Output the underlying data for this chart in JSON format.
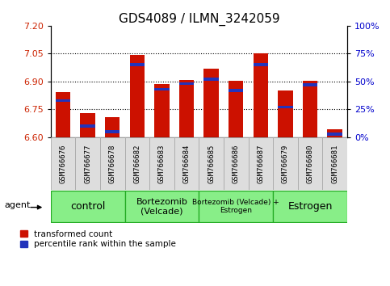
{
  "title": "GDS4089 / ILMN_3242059",
  "samples": [
    "GSM766676",
    "GSM766677",
    "GSM766678",
    "GSM766682",
    "GSM766683",
    "GSM766684",
    "GSM766685",
    "GSM766686",
    "GSM766687",
    "GSM766679",
    "GSM766680",
    "GSM766681"
  ],
  "red_values": [
    6.845,
    6.73,
    6.71,
    7.045,
    6.885,
    6.91,
    6.97,
    6.905,
    7.05,
    6.85,
    6.905,
    6.645
  ],
  "blue_percentiles": [
    33,
    10,
    5,
    65,
    43,
    48,
    52,
    42,
    65,
    27,
    47,
    3
  ],
  "y_min": 6.6,
  "y_max": 7.2,
  "y_ticks_left": [
    6.6,
    6.75,
    6.9,
    7.05,
    7.2
  ],
  "y_ticks_right": [
    0,
    25,
    50,
    75,
    100
  ],
  "y_labels_right": [
    "0%",
    "25%",
    "50%",
    "75%",
    "100%"
  ],
  "dotted_lines": [
    6.75,
    6.9,
    7.05
  ],
  "bar_color_red": "#cc1100",
  "bar_color_blue": "#2233bb",
  "bar_width": 0.6,
  "title_fontsize": 11,
  "groups": [
    {
      "label": "control",
      "start": 0,
      "end": 2,
      "fontsize": 9
    },
    {
      "label": "Bortezomib\n(Velcade)",
      "start": 3,
      "end": 5,
      "fontsize": 8
    },
    {
      "label": "Bortezomib (Velcade) +\nEstrogen",
      "start": 6,
      "end": 8,
      "fontsize": 6.5
    },
    {
      "label": "Estrogen",
      "start": 9,
      "end": 11,
      "fontsize": 9
    }
  ],
  "group_fill": "#88ee88",
  "group_edge": "#22aa22",
  "sample_box_fill": "#dddddd",
  "sample_box_edge": "#aaaaaa",
  "legend_red": "transformed count",
  "legend_blue": "percentile rank within the sample",
  "axis_color_red": "#cc2200",
  "axis_color_blue": "#0000cc",
  "sample_label_fontsize": 6.5
}
